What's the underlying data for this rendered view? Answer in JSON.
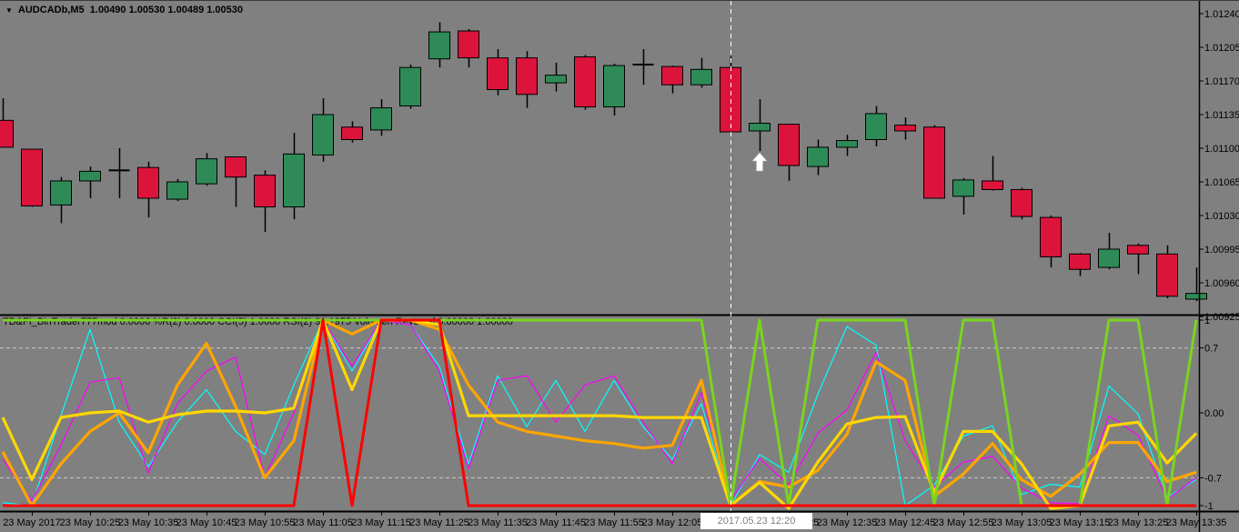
{
  "header": {
    "dropdown_icon": "▼",
    "symbol_period": "AUDCADb,M5",
    "quote": "1.00490 1.00530 1.00489 1.00530"
  },
  "crosshair": {
    "time_label": "2017.05.23 12:20",
    "x_index": 25
  },
  "annotations": {
    "up_arrow": {
      "x_index": 26,
      "color": "#ffffff",
      "meaning": "buy-signal-arrow"
    }
  },
  "colors": {
    "background": "#808080",
    "bull": "#2E8B57",
    "bear": "#DC143C",
    "outline": "#000000",
    "axis_text": "#000000",
    "level_line": "#C8C8C8",
    "crosshair": "#FFFFFF",
    "badge_bg": "#FFFFFF",
    "badge_text": "#808080"
  },
  "chart_data": [
    {
      "type": "candlestick",
      "title": "AUDCADb,M5",
      "ylabel": "price",
      "y_axis": {
        "min": 1.00925,
        "max": 1.0124,
        "ticks": [
          "1.01240",
          "1.01205",
          "1.01170",
          "1.01135",
          "1.01100",
          "1.01065",
          "1.01030",
          "1.00995",
          "1.00960",
          "1.00925"
        ]
      },
      "x_labels": [
        "23 May 2017",
        "23 May 10:25",
        "23 May 10:35",
        "23 May 10:45",
        "23 May 10:55",
        "23 May 11:05",
        "23 May 11:15",
        "23 May 11:25",
        "23 May 11:35",
        "23 May 11:45",
        "23 May 11:55",
        "23 May 12:05",
        "23 May 12:15",
        "23 May 12:25",
        "23 May 12:35",
        "23 May 12:45",
        "23 May 12:55",
        "23 May 13:05",
        "23 May 13:15",
        "23 May 13:25",
        "23 May 13:35"
      ],
      "candles": [
        {
          "d": "down",
          "o": 1.01129,
          "h": 1.01152,
          "l": 1.01101,
          "c": 1.01101
        },
        {
          "d": "down",
          "o": 1.01099,
          "h": 1.01099,
          "l": 1.01039,
          "c": 1.0104
        },
        {
          "d": "up",
          "o": 1.01041,
          "h": 1.0107,
          "l": 1.01022,
          "c": 1.01066
        },
        {
          "d": "up",
          "o": 1.01066,
          "h": 1.01081,
          "l": 1.01048,
          "c": 1.01076
        },
        {
          "d": "doji",
          "o": 1.01077,
          "h": 1.011,
          "l": 1.01048,
          "c": 1.01077
        },
        {
          "d": "down",
          "o": 1.0108,
          "h": 1.01086,
          "l": 1.01028,
          "c": 1.01048
        },
        {
          "d": "up",
          "o": 1.01047,
          "h": 1.01068,
          "l": 1.01045,
          "c": 1.01065
        },
        {
          "d": "up",
          "o": 1.01063,
          "h": 1.01095,
          "l": 1.01061,
          "c": 1.01089
        },
        {
          "d": "down",
          "o": 1.01091,
          "h": 1.01091,
          "l": 1.01039,
          "c": 1.0107
        },
        {
          "d": "down",
          "o": 1.01072,
          "h": 1.01077,
          "l": 1.01013,
          "c": 1.01039
        },
        {
          "d": "up",
          "o": 1.01039,
          "h": 1.01116,
          "l": 1.01026,
          "c": 1.01094
        },
        {
          "d": "up",
          "o": 1.01093,
          "h": 1.01152,
          "l": 1.01086,
          "c": 1.01135
        },
        {
          "d": "down",
          "o": 1.01122,
          "h": 1.01128,
          "l": 1.01106,
          "c": 1.01109
        },
        {
          "d": "up",
          "o": 1.01119,
          "h": 1.01151,
          "l": 1.01113,
          "c": 1.01142
        },
        {
          "d": "up",
          "o": 1.01144,
          "h": 1.01187,
          "l": 1.01141,
          "c": 1.01184
        },
        {
          "d": "up",
          "o": 1.01193,
          "h": 1.01231,
          "l": 1.01184,
          "c": 1.01221
        },
        {
          "d": "down",
          "o": 1.01222,
          "h": 1.01224,
          "l": 1.01184,
          "c": 1.01194
        },
        {
          "d": "down",
          "o": 1.01194,
          "h": 1.01203,
          "l": 1.01155,
          "c": 1.01161
        },
        {
          "d": "down",
          "o": 1.01194,
          "h": 1.01201,
          "l": 1.01142,
          "c": 1.01156
        },
        {
          "d": "up",
          "o": 1.01168,
          "h": 1.01189,
          "l": 1.01159,
          "c": 1.01176
        },
        {
          "d": "down",
          "o": 1.01195,
          "h": 1.01197,
          "l": 1.0114,
          "c": 1.01143
        },
        {
          "d": "up",
          "o": 1.01143,
          "h": 1.01188,
          "l": 1.01134,
          "c": 1.01186
        },
        {
          "d": "doji",
          "o": 1.01187,
          "h": 1.01203,
          "l": 1.01166,
          "c": 1.01187
        },
        {
          "d": "down",
          "o": 1.01185,
          "h": 1.01186,
          "l": 1.01157,
          "c": 1.01166
        },
        {
          "d": "up",
          "o": 1.01166,
          "h": 1.01194,
          "l": 1.01163,
          "c": 1.01182
        },
        {
          "d": "down",
          "o": 1.01184,
          "h": 1.01196,
          "l": 1.01117,
          "c": 1.01117
        },
        {
          "d": "up",
          "o": 1.01118,
          "h": 1.01151,
          "l": 1.01097,
          "c": 1.01126
        },
        {
          "d": "down",
          "o": 1.01125,
          "h": 1.01125,
          "l": 1.01066,
          "c": 1.01082
        },
        {
          "d": "up",
          "o": 1.01081,
          "h": 1.01109,
          "l": 1.01072,
          "c": 1.01101
        },
        {
          "d": "up",
          "o": 1.01101,
          "h": 1.01114,
          "l": 1.01092,
          "c": 1.01108
        },
        {
          "d": "up",
          "o": 1.01109,
          "h": 1.01144,
          "l": 1.01102,
          "c": 1.01136
        },
        {
          "d": "down",
          "o": 1.01124,
          "h": 1.01132,
          "l": 1.01109,
          "c": 1.01118
        },
        {
          "d": "down",
          "o": 1.01122,
          "h": 1.01124,
          "l": 1.01048,
          "c": 1.01048
        },
        {
          "d": "up",
          "o": 1.0105,
          "h": 1.01069,
          "l": 1.01031,
          "c": 1.01067
        },
        {
          "d": "down",
          "o": 1.01066,
          "h": 1.01092,
          "l": 1.01056,
          "c": 1.01057
        },
        {
          "d": "down",
          "o": 1.01057,
          "h": 1.01059,
          "l": 1.01026,
          "c": 1.01029
        },
        {
          "d": "down",
          "o": 1.01028,
          "h": 1.0103,
          "l": 1.00976,
          "c": 1.00987
        },
        {
          "d": "down",
          "o": 1.0099,
          "h": 1.00991,
          "l": 1.00967,
          "c": 1.00974
        },
        {
          "d": "up",
          "o": 1.00976,
          "h": 1.01012,
          "l": 1.00974,
          "c": 1.00995
        },
        {
          "d": "down",
          "o": 1.00999,
          "h": 1.01001,
          "l": 1.00969,
          "c": 1.0099
        },
        {
          "d": "down",
          "o": 1.0099,
          "h": 1.00999,
          "l": 1.00944,
          "c": 1.00946
        },
        {
          "d": "up",
          "o": 1.00943,
          "h": 1.00976,
          "l": 1.00941,
          "c": 1.00949
        }
      ]
    },
    {
      "type": "line",
      "label": "TD&FI_BinTrader777mod 0.0006  %R(2)  0.0000  CCI(5) 1.0000  RSI(2) 91.1975  Volumen Reversal 0.00000  1.00000",
      "y_axis": {
        "min": -1,
        "max": 1,
        "ticks": [
          "1",
          "0.7",
          "0.00",
          "-0.7",
          "-1"
        ],
        "tick_values": [
          1,
          0.7,
          0,
          -0.7,
          -1
        ]
      },
      "levels": [
        0.7,
        -0.7
      ],
      "series": [
        {
          "name": "cyan-oscillator",
          "color": "#00FFFF",
          "width": 1.2,
          "values": [
            -0.97,
            -1,
            -0.03,
            0.9,
            -0.1,
            -0.58,
            -0.1,
            0.25,
            -0.2,
            -0.45,
            0.3,
            1,
            0.45,
            1,
            0.95,
            0.5,
            -0.55,
            0.4,
            -0.15,
            0.35,
            -0.2,
            0.35,
            -0.15,
            -0.5,
            0.1,
            -1,
            -0.45,
            -0.64,
            0.2,
            0.93,
            0.73,
            -1,
            -0.78,
            -0.25,
            -0.14,
            -0.88,
            -0.77,
            -0.8,
            0.29,
            -0.01,
            -0.91,
            -0.72
          ]
        },
        {
          "name": "magenta-oscillator",
          "color": "#FF00FF",
          "width": 1.2,
          "values": [
            -0.5,
            -0.95,
            -0.35,
            0.33,
            0.38,
            -0.65,
            0.1,
            0.45,
            0.6,
            -0.7,
            0,
            1,
            0.5,
            1,
            0.95,
            0.45,
            -0.6,
            0.35,
            0.4,
            -0.1,
            0.3,
            0.4,
            -0.1,
            -0.55,
            0.22,
            -0.95,
            -0.49,
            -0.78,
            -0.22,
            0.03,
            0.65,
            -0.3,
            -0.8,
            -0.53,
            -0.47,
            -0.81,
            -0.97,
            -0.98,
            -0.03,
            -0.24,
            -0.93,
            -0.7
          ]
        },
        {
          "name": "orange-oscillator",
          "color": "#FFA500",
          "width": 3.2,
          "values": [
            -0.42,
            -1,
            -0.55,
            -0.2,
            0,
            -0.43,
            0.3,
            0.75,
            0.07,
            -0.7,
            -0.3,
            1,
            0.85,
            1,
            1,
            0.9,
            0.3,
            -0.1,
            -0.2,
            -0.25,
            -0.3,
            -0.33,
            -0.38,
            -0.35,
            0.35,
            -1,
            -0.74,
            -0.8,
            -0.62,
            -0.23,
            0.55,
            0.35,
            -0.9,
            -0.66,
            -0.33,
            -0.72,
            -0.9,
            -0.66,
            -0.32,
            -0.32,
            -0.74,
            -0.64
          ]
        },
        {
          "name": "yellow-oscillator",
          "color": "#FFD700",
          "width": 3.2,
          "values": [
            -0.05,
            -0.72,
            -0.05,
            0,
            0.02,
            -0.1,
            -0.02,
            0.02,
            0.02,
            0,
            0.05,
            1,
            0.25,
            1,
            1,
            0.95,
            -0.03,
            -0.03,
            -0.03,
            -0.03,
            -0.03,
            -0.03,
            -0.05,
            -0.05,
            -0.05,
            -1,
            -0.75,
            -1.03,
            -0.53,
            -0.12,
            -0.05,
            -0.04,
            -0.86,
            -0.2,
            -0.2,
            -0.55,
            -1.03,
            -1,
            -0.14,
            -0.1,
            -0.54,
            -0.22
          ]
        },
        {
          "name": "lime-square-wave",
          "color": "#7AD41E",
          "width": 3,
          "values": [
            1,
            1,
            1,
            1,
            1,
            1,
            1,
            1,
            1,
            1,
            1,
            1,
            1,
            1,
            1,
            1,
            1,
            1,
            1,
            1,
            1,
            1,
            1,
            1,
            1,
            -1,
            1,
            -1,
            1,
            1,
            1,
            1,
            -1,
            1,
            1,
            -1,
            -1,
            -1,
            1,
            1,
            -1,
            1
          ]
        },
        {
          "name": "red-square-wave",
          "color": "#FF0000",
          "width": 3,
          "values": [
            -1,
            -1,
            -1,
            -1,
            -1,
            -1,
            -1,
            -1,
            -1,
            -1,
            -1,
            1,
            -1,
            1,
            1,
            1,
            -1,
            -1,
            -1,
            -1,
            -1,
            -1,
            -1,
            -1,
            -1,
            -1,
            -1,
            -1,
            -1,
            -1,
            -1,
            -1,
            -1,
            -1,
            -1,
            -1,
            -1,
            -1,
            -1,
            -1,
            -1,
            -1
          ]
        }
      ]
    }
  ]
}
